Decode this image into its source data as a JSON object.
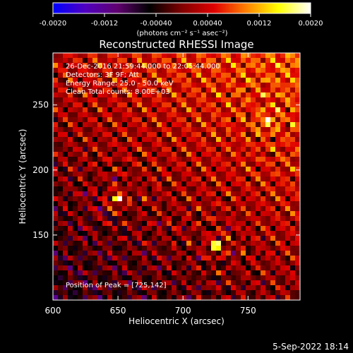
{
  "chart_data": {
    "type": "heatmap",
    "title": "Reconstructed RHESSI Image",
    "xlabel": "Heliocentric X (arcsec)",
    "ylabel": "Heliocentric Y (arcsec)",
    "xlim": [
      600,
      790
    ],
    "ylim": [
      100,
      290
    ],
    "x_ticks": [
      600,
      650,
      700,
      750
    ],
    "y_ticks": [
      150,
      200,
      250
    ],
    "colorbar": {
      "min": -0.002,
      "max": 0.002,
      "ticks": [
        "-0.0020",
        "-0.0012",
        "-0.00040",
        "0.00040",
        "0.0012",
        "0.0020"
      ],
      "label": "(photons cm⁻² s⁻¹ asec⁻²)",
      "colormap_stops": [
        "#0000ff",
        "#5000c0",
        "#600070",
        "#000000",
        "#800000",
        "#e00000",
        "#ff8000",
        "#ffff00",
        "#ffffff"
      ]
    },
    "annotations": [
      "26-Dec-2016 21:59:44.000 to 22:05:44.000",
      "Detectors: 3F 9F; Att",
      "Energy Range: 25.0 - 50.0 keV",
      "Clean    Total counts: 8.00E+03"
    ],
    "peak_label": "Position of Peak = [725,142]",
    "peak": {
      "x": 725,
      "y": 142
    },
    "bright_sources": [
      {
        "x": 650,
        "y": 178,
        "amp": 0.0019
      },
      {
        "x": 725,
        "y": 142,
        "amp": 0.002
      },
      {
        "x": 765,
        "y": 238,
        "amp": 0.0016
      }
    ]
  },
  "footer": {
    "date": "5-Sep-2022 18:14"
  }
}
